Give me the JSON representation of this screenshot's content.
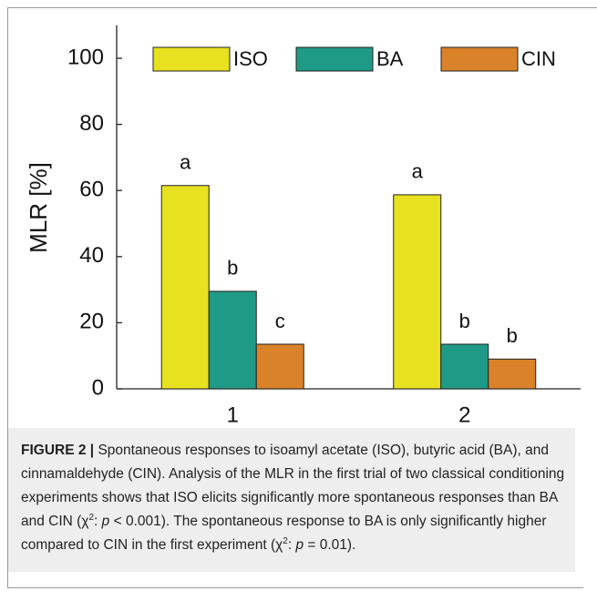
{
  "chart_data": {
    "type": "bar",
    "ylabel": "MLR [%]",
    "categories": [
      "1",
      "2"
    ],
    "series": [
      {
        "name": "ISO",
        "color": "#e8e11f",
        "values": [
          61.5,
          58.7
        ],
        "labels": [
          "a",
          "a"
        ]
      },
      {
        "name": "BA",
        "color": "#1f9a86",
        "values": [
          29.5,
          13.5
        ],
        "labels": [
          "b",
          "b"
        ]
      },
      {
        "name": "CIN",
        "color": "#d98229",
        "values": [
          13.5,
          9
        ],
        "labels": [
          "c",
          "b"
        ]
      }
    ],
    "ylim": [
      0,
      110
    ],
    "yticks": [
      0,
      20,
      40,
      60,
      80,
      100
    ],
    "grid": false,
    "legend": "top"
  },
  "caption": {
    "label": "FIGURE 2 |",
    "segments": [
      {
        "text": " Spontaneous responses to isoamyl acetate (ISO), butyric acid (BA), and cinnamaldehyde (CIN). Analysis of the MLR in the first trial of two classical conditioning experiments shows that ISO elicits significantly more spontaneous responses than BA and CIN (χ",
        "style": "normal"
      },
      {
        "text": "2",
        "style": "sup"
      },
      {
        "text": ": ",
        "style": "normal"
      },
      {
        "text": "p",
        "style": "italic"
      },
      {
        "text": " < 0.001). The spontaneous response to BA is only significantly higher compared to CIN in the first experiment (χ",
        "style": "normal"
      },
      {
        "text": "2",
        "style": "sup"
      },
      {
        "text": ": ",
        "style": "normal"
      },
      {
        "text": "p",
        "style": "italic"
      },
      {
        "text": " = 0.01).",
        "style": "normal"
      }
    ]
  }
}
